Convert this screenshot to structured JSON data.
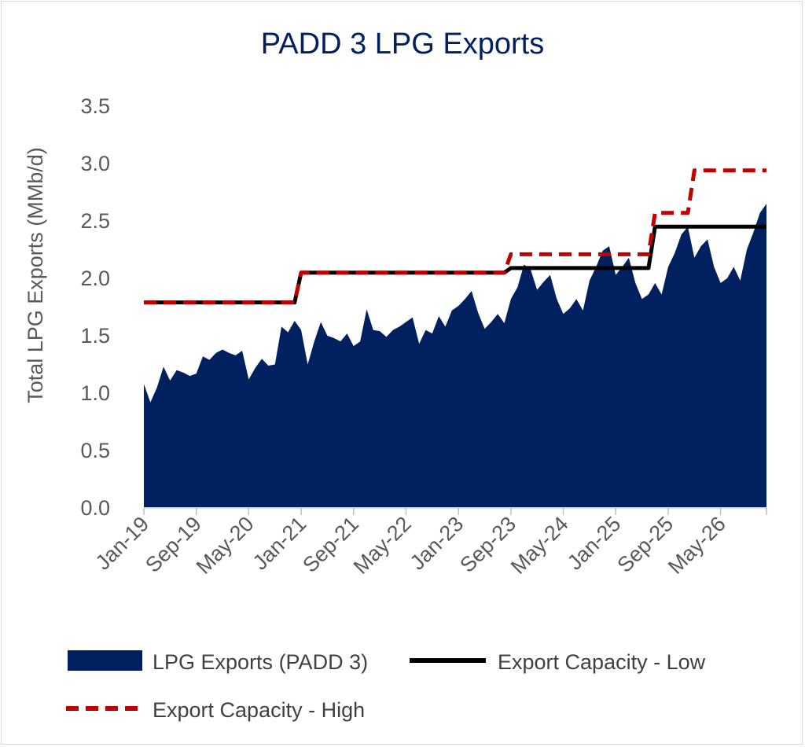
{
  "chart_data": {
    "type": "area",
    "title": "PADD 3 LPG Exports",
    "ylabel": "Total LPG Exports (MMb/d)",
    "xlabel": "",
    "ylim": [
      0,
      3.5
    ],
    "yticks": [
      "0.0",
      "0.5",
      "1.0",
      "1.5",
      "2.0",
      "2.5",
      "3.0",
      "3.5"
    ],
    "x_start": "Jan-19",
    "x_end": "Dec-26",
    "xtick_labels": [
      "Jan-19",
      "Sep-19",
      "May-20",
      "Jan-21",
      "Sep-21",
      "May-22",
      "Jan-23",
      "Sep-23",
      "May-24",
      "Jan-25",
      "Sep-25",
      "May-26"
    ],
    "grid": false,
    "legend_position": "bottom",
    "colors": {
      "exports": "#002060",
      "low": "#000000",
      "high": "#c00000",
      "title": "#002060"
    },
    "series": [
      {
        "name": "LPG Exports (PADD 3)",
        "style": "area",
        "values": [
          1.08,
          0.92,
          1.05,
          1.23,
          1.11,
          1.2,
          1.18,
          1.15,
          1.17,
          1.32,
          1.29,
          1.35,
          1.38,
          1.35,
          1.33,
          1.37,
          1.12,
          1.22,
          1.3,
          1.24,
          1.25,
          1.58,
          1.53,
          1.63,
          1.55,
          1.25,
          1.45,
          1.62,
          1.5,
          1.48,
          1.45,
          1.52,
          1.41,
          1.45,
          1.73,
          1.55,
          1.54,
          1.49,
          1.55,
          1.58,
          1.62,
          1.66,
          1.43,
          1.55,
          1.52,
          1.67,
          1.58,
          1.72,
          1.76,
          1.82,
          1.89,
          1.7,
          1.56,
          1.62,
          1.69,
          1.61,
          1.82,
          1.92,
          2.12,
          2.08,
          1.9,
          1.97,
          2.03,
          1.82,
          1.69,
          1.74,
          1.82,
          1.72,
          1.98,
          2.1,
          2.24,
          2.28,
          2.03,
          2.1,
          2.18,
          1.96,
          1.82,
          1.86,
          1.96,
          1.86,
          2.1,
          2.22,
          2.38,
          2.45,
          2.18,
          2.28,
          2.34,
          2.1,
          1.96,
          2.0,
          2.1,
          1.98,
          2.25,
          2.4,
          2.57,
          2.65
        ]
      },
      {
        "name": "Export Capacity - Low",
        "style": "solid",
        "steps": [
          {
            "from": "Jan-19",
            "to": "Dec-20",
            "value": 1.79
          },
          {
            "from": "Jan-21",
            "to": "Aug-23",
            "value": 2.05
          },
          {
            "from": "Sep-23",
            "to": "Jun-25",
            "value": 2.09
          },
          {
            "from": "Jul-25",
            "to": "Dec-26",
            "value": 2.45
          }
        ]
      },
      {
        "name": "Export Capacity - High",
        "style": "dashed",
        "steps": [
          {
            "from": "Jan-19",
            "to": "Dec-20",
            "value": 1.79
          },
          {
            "from": "Jan-21",
            "to": "Aug-23",
            "value": 2.05
          },
          {
            "from": "Sep-23",
            "to": "Jun-25",
            "value": 2.21
          },
          {
            "from": "Jul-25",
            "to": "Dec-25",
            "value": 2.57
          },
          {
            "from": "Jan-26",
            "to": "Dec-26",
            "value": 2.94
          }
        ]
      }
    ]
  }
}
